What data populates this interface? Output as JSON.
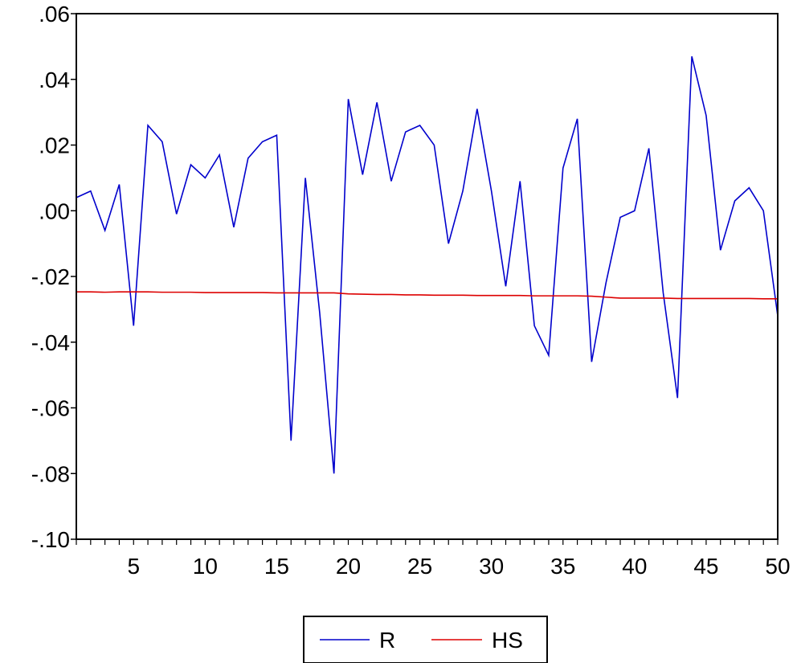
{
  "chart_data": {
    "type": "line",
    "title": "",
    "xlabel": "",
    "ylabel": "",
    "xlim": [
      1,
      50
    ],
    "ylim": [
      -0.1,
      0.06
    ],
    "x_ticks": [
      5,
      10,
      15,
      20,
      25,
      30,
      35,
      40,
      45,
      50
    ],
    "x_tick_labels": [
      "5",
      "10",
      "15",
      "20",
      "25",
      "30",
      "35",
      "40",
      "45",
      "50"
    ],
    "y_ticks": [
      0.06,
      0.04,
      0.02,
      0.0,
      -0.02,
      -0.04,
      -0.06,
      -0.08,
      -0.1
    ],
    "y_tick_labels": [
      ".06",
      ".04",
      ".02",
      ".00",
      "-.02",
      "-.04",
      "-.06",
      "-.08",
      "-.10"
    ],
    "grid": false,
    "legend_position": "bottom-center",
    "x": [
      1,
      2,
      3,
      4,
      5,
      6,
      7,
      8,
      9,
      10,
      11,
      12,
      13,
      14,
      15,
      16,
      17,
      18,
      19,
      20,
      21,
      22,
      23,
      24,
      25,
      26,
      27,
      28,
      29,
      30,
      31,
      32,
      33,
      34,
      35,
      36,
      37,
      38,
      39,
      40,
      41,
      42,
      43,
      44,
      45,
      46,
      47,
      48,
      49,
      50
    ],
    "series": [
      {
        "name": "R",
        "color": "#0000cc",
        "values": [
          0.004,
          0.006,
          -0.006,
          0.008,
          -0.035,
          0.026,
          0.021,
          -0.001,
          0.014,
          0.01,
          0.017,
          -0.005,
          0.016,
          0.021,
          0.023,
          -0.07,
          0.01,
          -0.031,
          -0.08,
          0.034,
          0.011,
          0.033,
          0.009,
          0.024,
          0.026,
          0.02,
          -0.01,
          0.006,
          0.031,
          0.006,
          -0.023,
          0.009,
          -0.035,
          -0.044,
          0.013,
          0.028,
          -0.046,
          -0.022,
          -0.002,
          0.0,
          0.019,
          -0.025,
          -0.057,
          0.047,
          0.029,
          -0.012,
          0.003,
          0.007,
          0.0,
          -0.032
        ]
      },
      {
        "name": "HS",
        "color": "#dd0000",
        "values": [
          -0.0247,
          -0.0247,
          -0.0248,
          -0.0247,
          -0.0247,
          -0.0247,
          -0.0248,
          -0.0248,
          -0.0248,
          -0.0249,
          -0.0249,
          -0.0249,
          -0.0249,
          -0.0249,
          -0.025,
          -0.025,
          -0.025,
          -0.025,
          -0.025,
          -0.0253,
          -0.0254,
          -0.0255,
          -0.0255,
          -0.0256,
          -0.0256,
          -0.0257,
          -0.0257,
          -0.0257,
          -0.0258,
          -0.0258,
          -0.0258,
          -0.0258,
          -0.0259,
          -0.0259,
          -0.0259,
          -0.0259,
          -0.026,
          -0.0263,
          -0.0266,
          -0.0266,
          -0.0266,
          -0.0266,
          -0.0267,
          -0.0267,
          -0.0267,
          -0.0267,
          -0.0267,
          -0.0267,
          -0.0268,
          -0.0268
        ]
      }
    ]
  }
}
